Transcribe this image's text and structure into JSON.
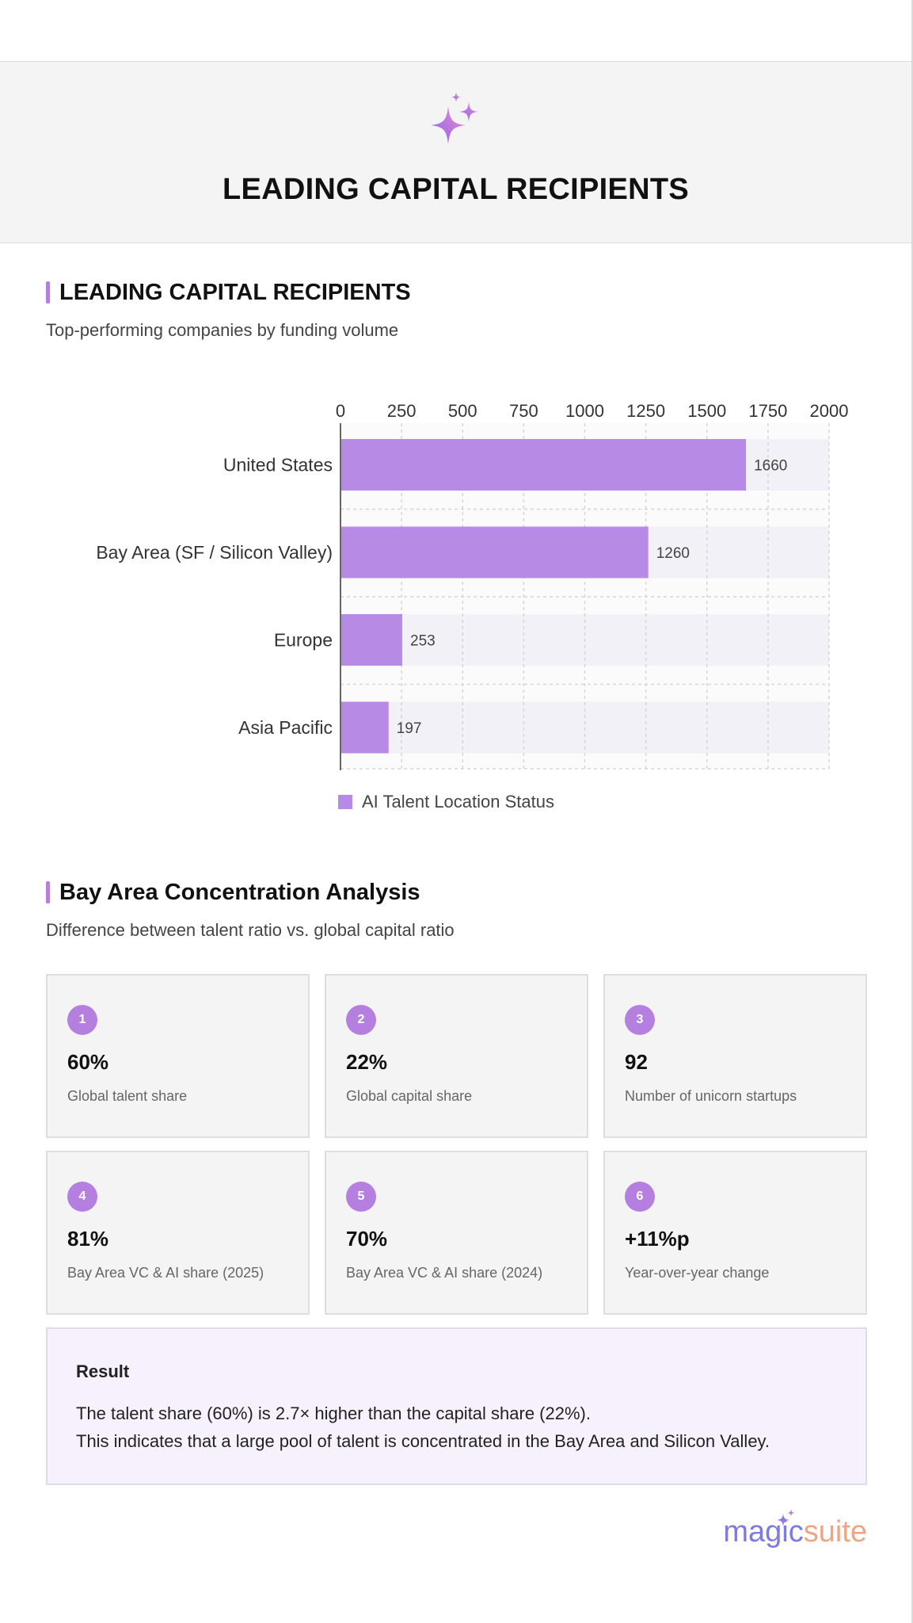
{
  "header": {
    "title": "LEADING CAPITAL RECIPIENTS"
  },
  "section1": {
    "title": "LEADING CAPITAL RECIPIENTS",
    "subtitle": "Top-performing companies by funding volume"
  },
  "chart_data": {
    "type": "bar",
    "orientation": "horizontal",
    "categories": [
      "United States",
      "Bay Area (SF / Silicon Valley)",
      "Europe",
      "Asia Pacific"
    ],
    "values": [
      1660,
      1260,
      253,
      197
    ],
    "data_labels": [
      "1660",
      "1260",
      "253",
      "197"
    ],
    "series_name": "AI Talent Location Status",
    "xlim": [
      0,
      2000
    ],
    "xticks": [
      0,
      250,
      500,
      750,
      1000,
      1250,
      1500,
      1750,
      2000
    ],
    "tick_labels": [
      "0",
      "250",
      "500",
      "750",
      "1000",
      "1250",
      "1500",
      "1750",
      "2000"
    ],
    "grid": true,
    "legend_position": "bottom",
    "bar_color": "#b78ae6",
    "track_color": "#f1f1f7"
  },
  "section2": {
    "title": "Bay Area Concentration Analysis",
    "subtitle": "Difference between talent ratio vs. global capital ratio"
  },
  "cards": [
    {
      "num": "1",
      "value": "60%",
      "label": "Global talent share"
    },
    {
      "num": "2",
      "value": "22%",
      "label": "Global capital share"
    },
    {
      "num": "3",
      "value": "92",
      "label": "Number of unicorn startups"
    },
    {
      "num": "4",
      "value": "81%",
      "label": "Bay Area VC & AI share (2025)"
    },
    {
      "num": "5",
      "value": "70%",
      "label": "Bay Area VC & AI share (2024)"
    },
    {
      "num": "6",
      "value": "+11%p",
      "label": "Year-over-year change"
    }
  ],
  "result": {
    "title": "Result",
    "line1": "The talent share (60%) is 2.7× higher than the capital share (22%).",
    "line2": "This indicates that a large pool of talent is concentrated in the Bay Area and Silicon Valley."
  },
  "brand": {
    "part1": "magic",
    "part2": "suite"
  },
  "colors": {
    "accent": "#b57fe0",
    "bar": "#b78ae6",
    "result_bg": "#f6f1fc"
  }
}
